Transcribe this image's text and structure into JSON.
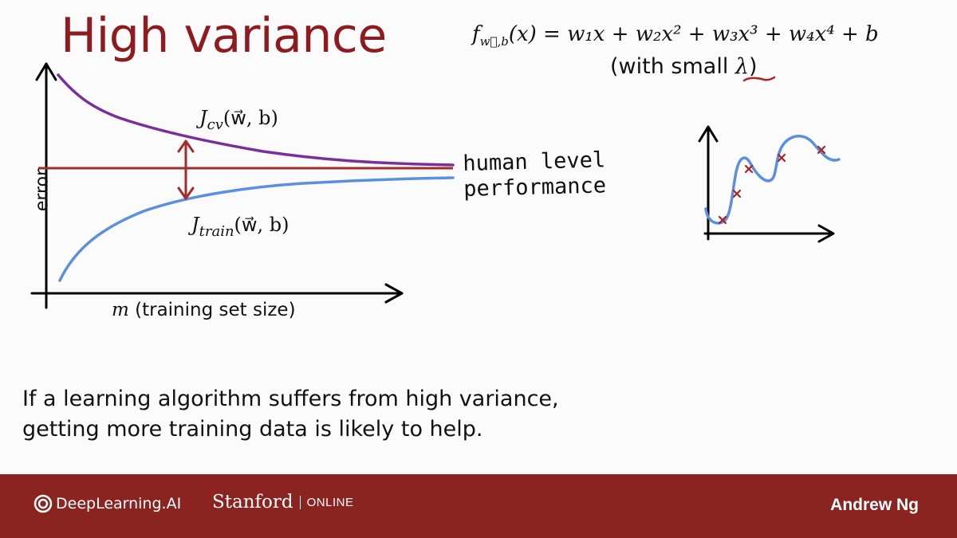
{
  "slide": {
    "title": "High variance",
    "equation": {
      "lhs": "f",
      "lhs_sub": "w⃗,b",
      "body": "(x) = w₁x + w₂x² + w₃x³ + w₄x⁴ + b"
    },
    "lambda_note": {
      "prefix": "(with small ",
      "symbol": "λ",
      "suffix": ")"
    },
    "learning_curve": {
      "y_axis_label": "error",
      "x_axis_var": "m",
      "x_axis_label": " (training set size)",
      "jcv_label": {
        "J": "J",
        "sub": "cv",
        "args": "(w⃗, b)"
      },
      "jtrain_label": {
        "J": "J",
        "sub": "train",
        "args": "(w⃗, b)"
      },
      "human_level_line1": "human level",
      "human_level_line2": "performance"
    },
    "conclusion_line1": "If a learning algorithm suffers from high variance,",
    "conclusion_line2": "getting more training data is likely to help."
  },
  "footer": {
    "brand": "DeepLearning.AI",
    "university": "Stanford",
    "university_tag": "ONLINE",
    "author": "Andrew Ng"
  },
  "colors": {
    "title": "#8e1b1f",
    "jcv_curve": "#7a2e9e",
    "jtrain_curve": "#5b8fdf",
    "human_level": "#a52a2a",
    "footer_bg": "#8b2420",
    "data_points": "#b02020"
  }
}
